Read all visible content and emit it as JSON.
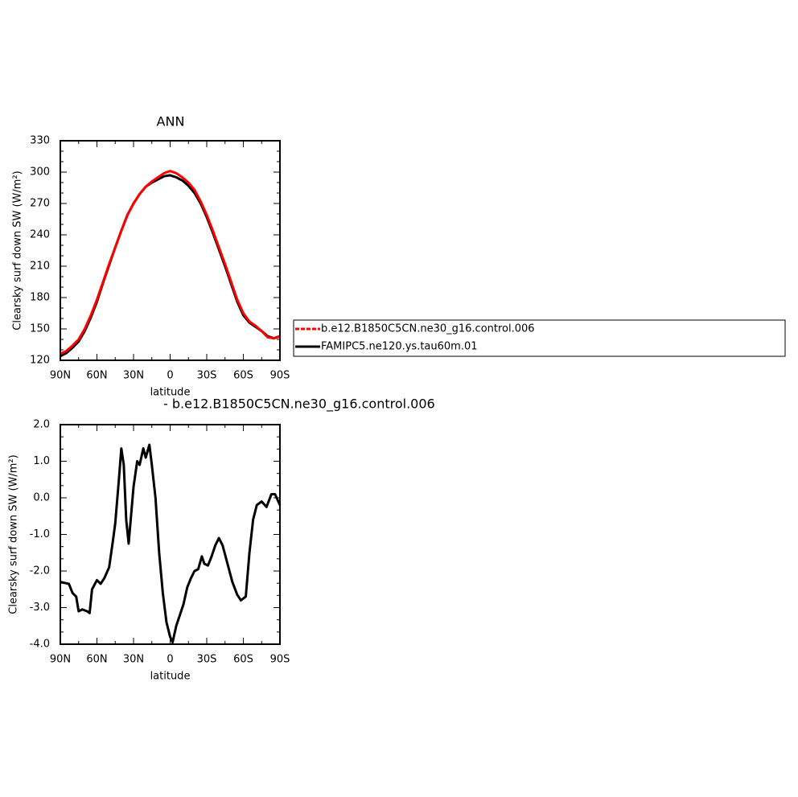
{
  "chart_data": [
    {
      "type": "line",
      "title": "ANN",
      "xlabel": "latitude",
      "ylabel": "Clearsky surf down SW (W/m²)",
      "x": [
        90,
        85,
        80,
        75,
        70,
        65,
        60,
        55,
        50,
        45,
        40,
        35,
        30,
        25,
        20,
        15,
        10,
        5,
        0,
        -5,
        -10,
        -15,
        -20,
        -25,
        -30,
        -35,
        -40,
        -45,
        -50,
        -55,
        -60,
        -65,
        -70,
        -75,
        -80,
        -85,
        -90
      ],
      "series": [
        {
          "name": "b.e12.B1850C5CN.ne30_g16.control.006",
          "color": "#ff0000",
          "dashed": true,
          "values": [
            126,
            129,
            134,
            140,
            150,
            163,
            178,
            195,
            212,
            228,
            244,
            259,
            270,
            279,
            286,
            291,
            295,
            299,
            301,
            299,
            295,
            290,
            283,
            272,
            259,
            244,
            228,
            212,
            195,
            178,
            165,
            157,
            153,
            148,
            142,
            141,
            143
          ]
        },
        {
          "name": "FAMIPC5.ne120.ys.tau60m.01",
          "color": "#000000",
          "dashed": false,
          "values": [
            124,
            127,
            132,
            138,
            148,
            161,
            176,
            194,
            211,
            228,
            244,
            259,
            270,
            279,
            286,
            290,
            293,
            296,
            297,
            295,
            292,
            287,
            280,
            270,
            257,
            242,
            226,
            210,
            193,
            176,
            163,
            156,
            152,
            148,
            143,
            141,
            143
          ]
        }
      ],
      "xlim": [
        90,
        -90
      ],
      "xticks": [
        {
          "value": 90,
          "label": "90N"
        },
        {
          "value": 60,
          "label": "60N"
        },
        {
          "value": 30,
          "label": "30N"
        },
        0,
        {
          "value": -30,
          "label": "30S"
        },
        {
          "value": -60,
          "label": "60S"
        },
        {
          "value": -90,
          "label": "90S"
        }
      ],
      "ylim": [
        120,
        330
      ],
      "yticks": [
        120,
        150,
        180,
        210,
        240,
        270,
        300,
        330
      ],
      "legend": "right"
    },
    {
      "type": "line",
      "title": "- b.e12.B1850C5CN.ne30_g16.control.006",
      "xlabel": "latitude",
      "ylabel": "Clearsky surf down SW (W/m²)",
      "x": [
        90,
        83,
        80,
        77,
        75,
        72,
        68,
        66,
        64,
        60,
        57,
        54,
        50,
        47,
        45,
        42,
        40,
        38,
        36,
        34,
        30,
        27,
        25,
        22,
        20,
        17,
        15,
        12,
        9,
        6,
        3,
        0,
        -2,
        -5,
        -8,
        -11,
        -14,
        -17,
        -20,
        -23,
        -26,
        -28,
        -31,
        -34,
        -37,
        -40,
        -43,
        -47,
        -51,
        -55,
        -58,
        -62,
        -65,
        -68,
        -71,
        -75,
        -79,
        -83,
        -86,
        -90
      ],
      "values": [
        -2.3,
        -2.35,
        -2.6,
        -2.7,
        -3.1,
        -3.05,
        -3.1,
        -3.15,
        -2.5,
        -2.25,
        -2.35,
        -2.2,
        -1.9,
        -1.2,
        -0.7,
        0.5,
        1.35,
        0.9,
        -0.6,
        -1.25,
        0.3,
        1.0,
        0.9,
        1.35,
        1.1,
        1.45,
        0.9,
        0.0,
        -1.5,
        -2.6,
        -3.4,
        -3.8,
        -3.95,
        -3.5,
        -3.2,
        -2.9,
        -2.45,
        -2.2,
        -2.0,
        -1.95,
        -1.6,
        -1.8,
        -1.85,
        -1.6,
        -1.3,
        -1.1,
        -1.3,
        -1.8,
        -2.3,
        -2.65,
        -2.8,
        -2.7,
        -1.5,
        -0.6,
        -0.2,
        -0.1,
        -0.25,
        0.1,
        0.1,
        -0.2
      ],
      "color": "#000000",
      "xlim": [
        90,
        -90
      ],
      "xticks": [
        {
          "value": 90,
          "label": "90N"
        },
        {
          "value": 60,
          "label": "60N"
        },
        {
          "value": 30,
          "label": "30N"
        },
        0,
        {
          "value": -30,
          "label": "30S"
        },
        {
          "value": -60,
          "label": "60S"
        },
        {
          "value": -90,
          "label": "90S"
        }
      ],
      "ylim": [
        -4,
        2
      ],
      "yticks": [
        {
          "value": -4,
          "label": "-4.0"
        },
        {
          "value": -3,
          "label": "-3.0"
        },
        {
          "value": -2,
          "label": "-2.0"
        },
        {
          "value": -1,
          "label": "-1.0"
        },
        {
          "value": 0,
          "label": "0.0"
        },
        {
          "value": 1,
          "label": "1.0"
        },
        {
          "value": 2,
          "label": "2.0"
        }
      ]
    }
  ]
}
